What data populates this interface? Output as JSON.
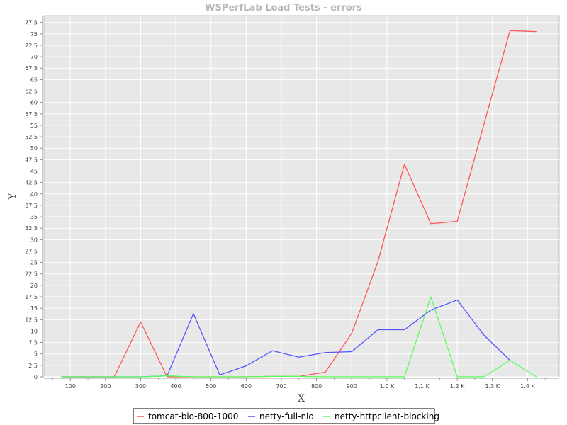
{
  "chart_data": {
    "type": "line",
    "title": "WSPerfLab Load Tests - errors",
    "xlabel": "X",
    "ylabel": "Y",
    "xlim": [
      25,
      1490
    ],
    "ylim": [
      0,
      79
    ],
    "x_ticks": [
      100,
      200,
      300,
      400,
      500,
      600,
      700,
      800,
      900,
      1000,
      1100,
      1200,
      1300,
      1400
    ],
    "x_tick_labels": [
      "100",
      "200",
      "300",
      "400",
      "500",
      "600",
      "700",
      "800",
      "900",
      "1.0 K",
      "1.1 K",
      "1.2 K",
      "1.3 K",
      "1.4 K"
    ],
    "y_ticks": [
      0,
      2.5,
      5,
      7.5,
      10,
      12.5,
      15,
      17.5,
      20,
      22.5,
      25,
      27.5,
      30,
      32.5,
      35,
      37.5,
      40,
      42.5,
      45,
      47.5,
      50,
      52.5,
      55,
      57.5,
      60,
      62.5,
      65,
      67.5,
      70,
      72.5,
      75,
      77.5
    ],
    "y_tick_labels": [
      "0",
      "2.5",
      "5",
      "7.5",
      "10",
      "12.5",
      "15",
      "17.5",
      "20",
      "22.5",
      "25",
      "27.5",
      "30",
      "32.5",
      "35",
      "37.5",
      "40",
      "42.5",
      "45",
      "47.5",
      "50",
      "52.5",
      "55",
      "57.5",
      "60",
      "62.5",
      "65",
      "67.5",
      "70",
      "72.5",
      "75",
      "77.5"
    ],
    "grid": true,
    "legend_position": "bottom",
    "x": [
      75,
      150,
      225,
      300,
      375,
      450,
      525,
      600,
      675,
      750,
      825,
      900,
      975,
      1050,
      1125,
      1200,
      1275,
      1350,
      1425
    ],
    "series": [
      {
        "name": "tomcat-bio-800-1000",
        "color": "#ff5555",
        "values": [
          0,
          0,
          0,
          12.0,
          0,
          0,
          0,
          0,
          0.1,
          0.1,
          1.0,
          9.5,
          25.3,
          46.5,
          33.5,
          34.0,
          55.0,
          75.7,
          75.5
        ]
      },
      {
        "name": "netty-full-nio",
        "color": "#5555ff",
        "values": [
          0,
          0,
          0,
          0,
          0.2,
          13.8,
          0.4,
          2.4,
          5.7,
          4.3,
          5.3,
          5.5,
          10.3,
          10.3,
          14.6,
          16.8,
          9.2,
          3.6,
          null
        ]
      },
      {
        "name": "netty-httpclient-blocking",
        "color": "#55ff55",
        "values": [
          0,
          0,
          0,
          0,
          0.2,
          0,
          0,
          0,
          0.1,
          0.1,
          0,
          0,
          0,
          0,
          17.5,
          0,
          0,
          3.6,
          0
        ]
      }
    ]
  }
}
